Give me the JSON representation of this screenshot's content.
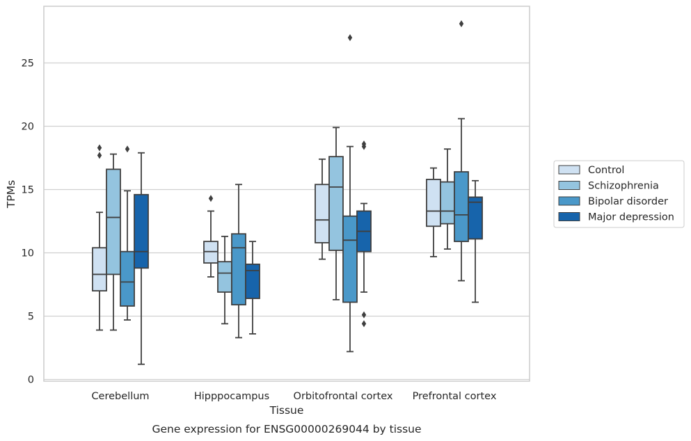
{
  "caption": "Gene expression for ENSG00000269044 by tissue",
  "chart_data": {
    "type": "box",
    "xlabel": "Tissue",
    "ylabel": "TPMs",
    "categories": [
      "Cerebellum",
      "Hipppocampus",
      "Orbitofrontal cortex",
      "Prefrontal cortex"
    ],
    "ylim": [
      0,
      29.5
    ],
    "yticks": [
      0,
      5,
      10,
      15,
      20,
      25
    ],
    "grid": "horizontal",
    "legend_position": "right",
    "series": [
      {
        "name": "Control",
        "color": "#cfe1f2",
        "boxes": [
          {
            "min": 3.9,
            "q1": 7.0,
            "median": 8.3,
            "q3": 10.4,
            "max": 13.2,
            "outliers": [
              18.3,
              17.7
            ]
          },
          {
            "min": 8.1,
            "q1": 9.2,
            "median": 10.1,
            "q3": 10.9,
            "max": 13.3,
            "outliers": [
              14.3
            ]
          },
          {
            "min": 9.5,
            "q1": 10.8,
            "median": 12.6,
            "q3": 15.4,
            "max": 17.4,
            "outliers": []
          },
          {
            "min": 9.7,
            "q1": 12.1,
            "median": 13.3,
            "q3": 15.8,
            "max": 16.7,
            "outliers": []
          }
        ]
      },
      {
        "name": "Schizophrenia",
        "color": "#94c4df",
        "boxes": [
          {
            "min": 3.9,
            "q1": 8.3,
            "median": 12.8,
            "q3": 16.6,
            "max": 17.8,
            "outliers": []
          },
          {
            "min": 4.4,
            "q1": 6.9,
            "median": 8.4,
            "q3": 9.3,
            "max": 11.3,
            "outliers": []
          },
          {
            "min": 6.3,
            "q1": 10.2,
            "median": 15.2,
            "q3": 17.6,
            "max": 19.9,
            "outliers": []
          },
          {
            "min": 10.3,
            "q1": 12.3,
            "median": 13.3,
            "q3": 15.6,
            "max": 18.2,
            "outliers": []
          }
        ]
      },
      {
        "name": "Bipolar disorder",
        "color": "#4a98c9",
        "boxes": [
          {
            "min": 4.7,
            "q1": 5.8,
            "median": 7.7,
            "q3": 10.1,
            "max": 14.9,
            "outliers": [
              18.2
            ]
          },
          {
            "min": 3.3,
            "q1": 5.9,
            "median": 10.4,
            "q3": 11.5,
            "max": 15.4,
            "outliers": []
          },
          {
            "min": 2.2,
            "q1": 6.1,
            "median": 11.0,
            "q3": 12.9,
            "max": 18.4,
            "outliers": [
              27.0
            ]
          },
          {
            "min": 7.8,
            "q1": 10.9,
            "median": 13.0,
            "q3": 16.4,
            "max": 20.6,
            "outliers": [
              28.1
            ]
          }
        ]
      },
      {
        "name": "Major depression",
        "color": "#1764ab",
        "boxes": [
          {
            "min": 1.2,
            "q1": 8.8,
            "median": 10.1,
            "q3": 14.6,
            "max": 17.9,
            "outliers": []
          },
          {
            "min": 3.6,
            "q1": 6.4,
            "median": 8.6,
            "q3": 9.1,
            "max": 10.9,
            "outliers": []
          },
          {
            "min": 6.9,
            "q1": 10.1,
            "median": 11.7,
            "q3": 13.3,
            "max": 13.9,
            "outliers": [
              18.6,
              18.4,
              5.1,
              4.4
            ]
          },
          {
            "min": 6.1,
            "q1": 11.1,
            "median": 14.0,
            "q3": 14.4,
            "max": 15.7,
            "outliers": []
          }
        ]
      }
    ]
  }
}
